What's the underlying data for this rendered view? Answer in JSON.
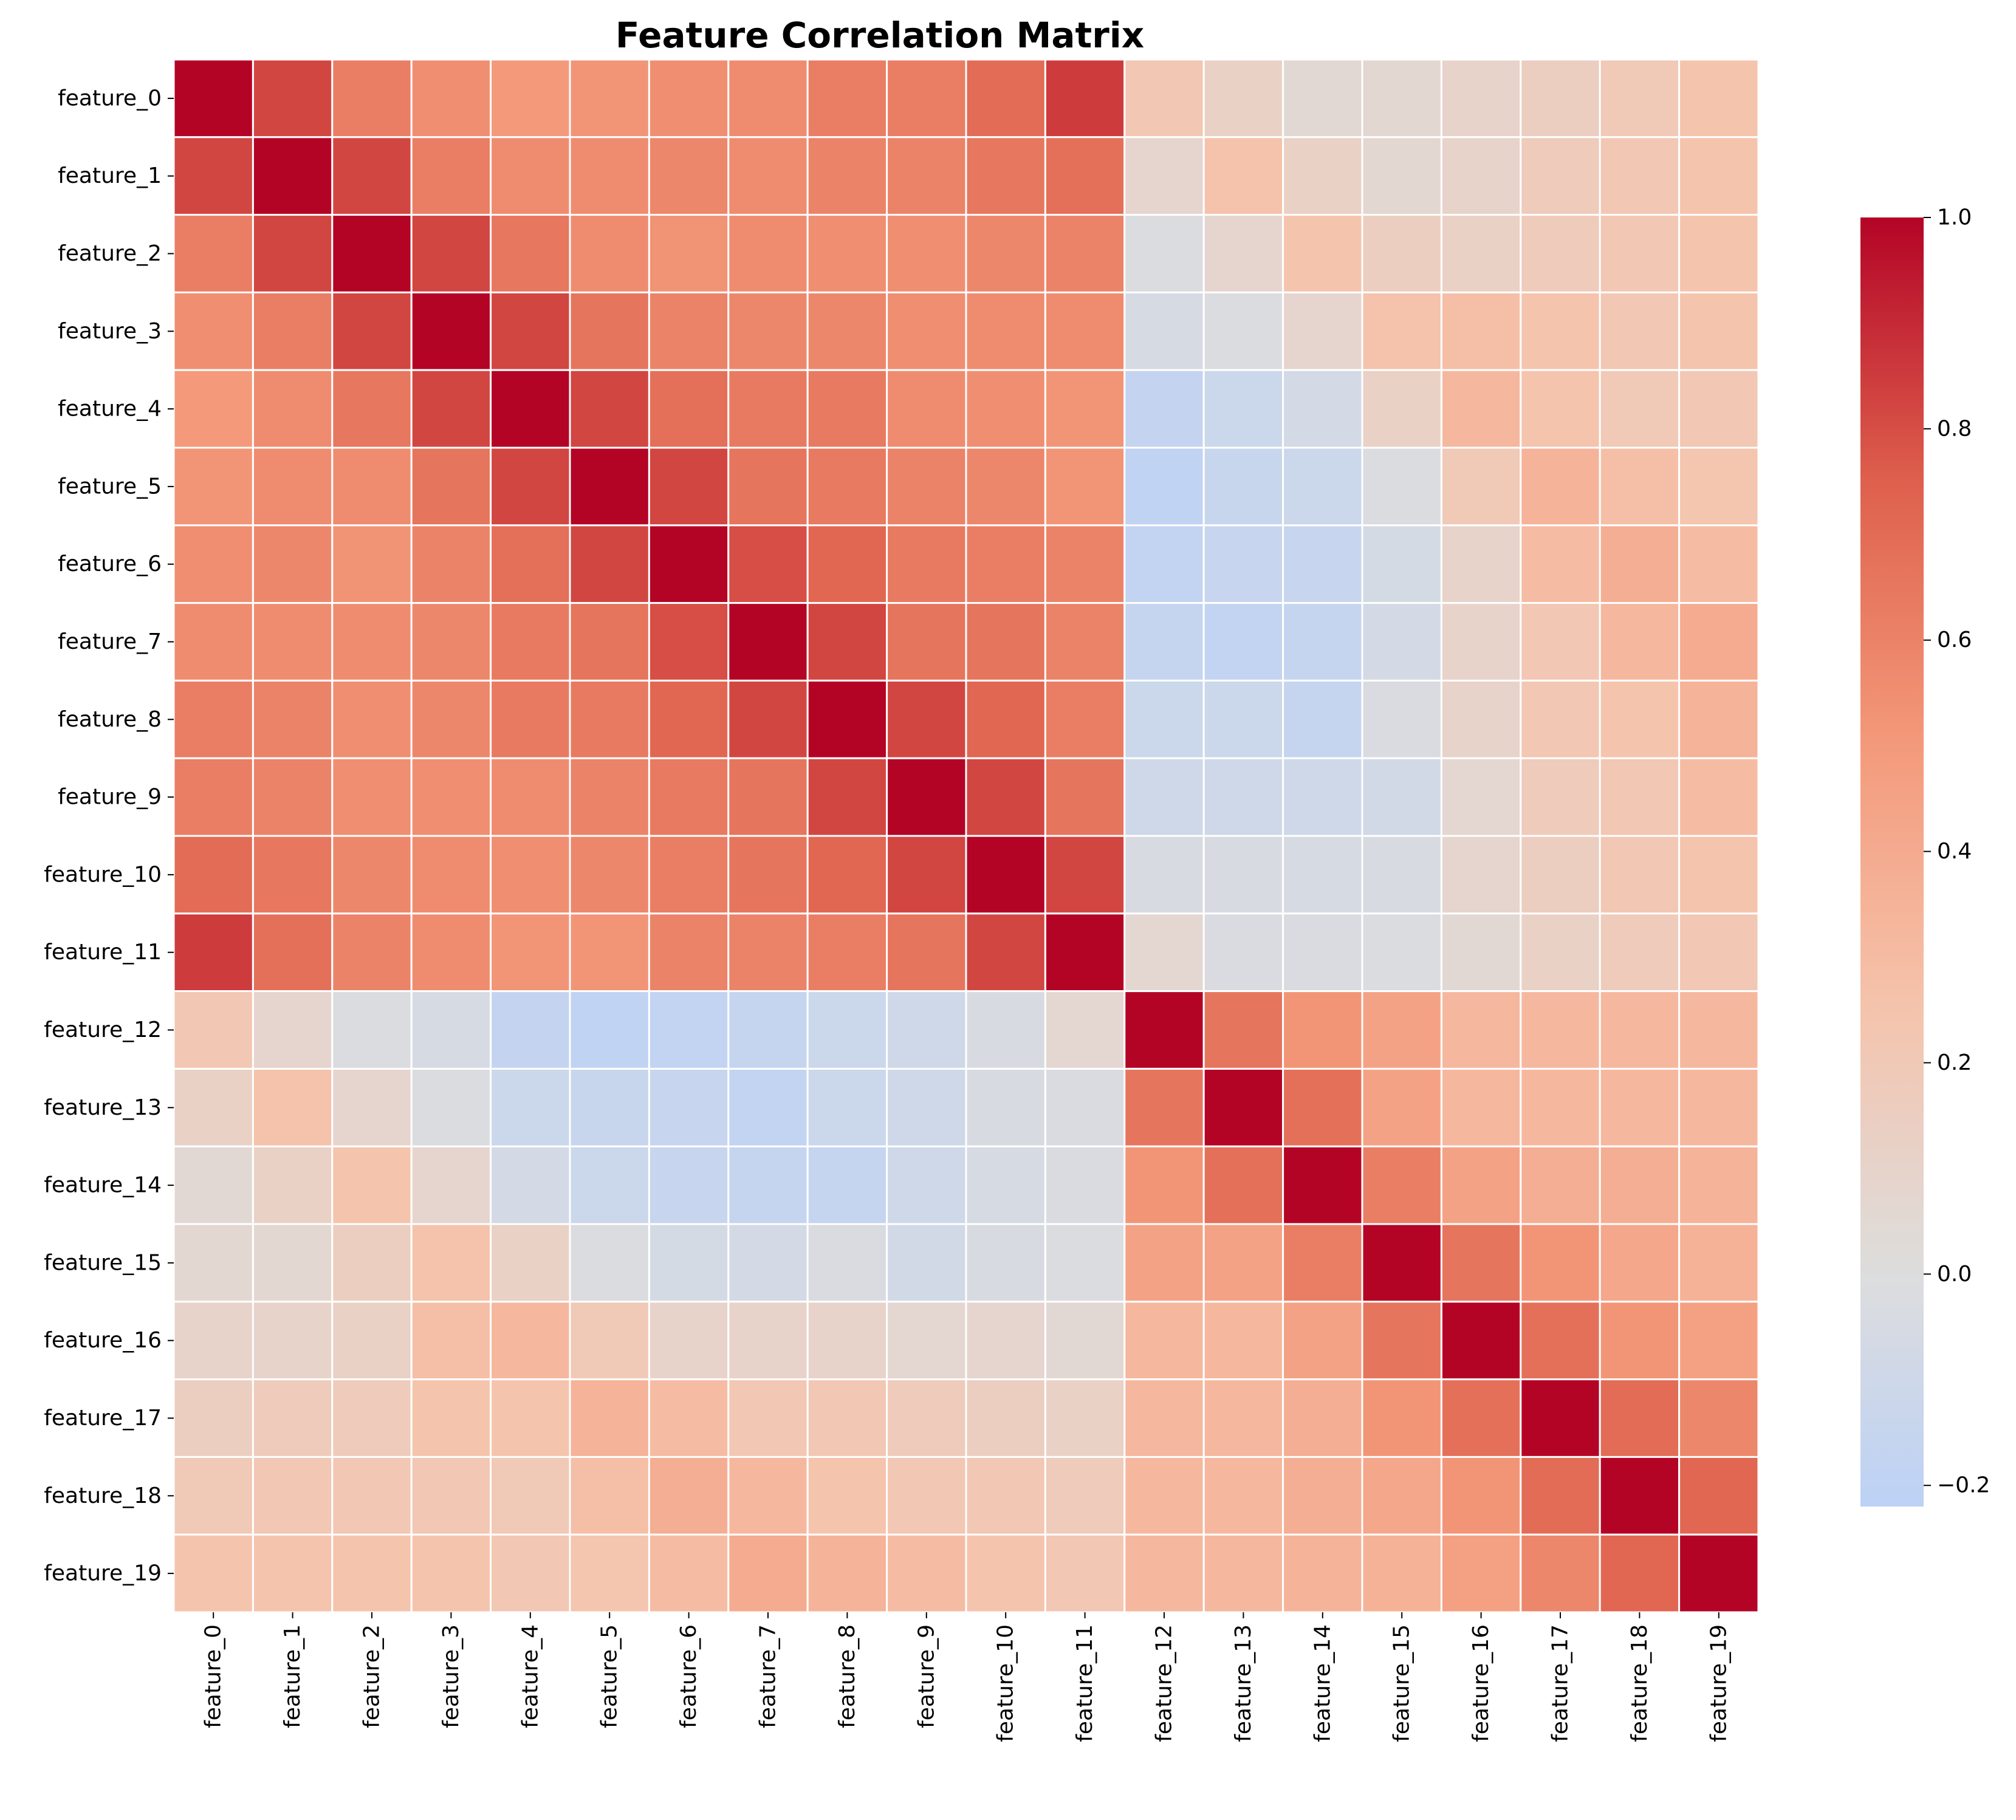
{
  "chart_data": {
    "type": "heatmap",
    "title": "Feature Correlation Matrix",
    "row_labels": [
      "feature_0",
      "feature_1",
      "feature_2",
      "feature_3",
      "feature_4",
      "feature_5",
      "feature_6",
      "feature_7",
      "feature_8",
      "feature_9",
      "feature_10",
      "feature_11",
      "feature_12",
      "feature_13",
      "feature_14",
      "feature_15",
      "feature_16",
      "feature_17",
      "feature_18",
      "feature_19"
    ],
    "col_labels": [
      "feature_0",
      "feature_1",
      "feature_2",
      "feature_3",
      "feature_4",
      "feature_5",
      "feature_6",
      "feature_7",
      "feature_8",
      "feature_9",
      "feature_10",
      "feature_11",
      "feature_12",
      "feature_13",
      "feature_14",
      "feature_15",
      "feature_16",
      "feature_17",
      "feature_18",
      "feature_19"
    ],
    "values": [
      [
        1.0,
        0.82,
        0.62,
        0.55,
        0.5,
        0.52,
        0.55,
        0.56,
        0.62,
        0.62,
        0.7,
        0.85,
        0.22,
        0.12,
        0.05,
        0.06,
        0.1,
        0.15,
        0.2,
        0.25
      ],
      [
        0.82,
        1.0,
        0.82,
        0.62,
        0.56,
        0.56,
        0.58,
        0.56,
        0.6,
        0.6,
        0.65,
        0.68,
        0.08,
        0.26,
        0.12,
        0.06,
        0.1,
        0.18,
        0.22,
        0.25
      ],
      [
        0.62,
        0.82,
        1.0,
        0.82,
        0.65,
        0.56,
        0.53,
        0.56,
        0.55,
        0.55,
        0.58,
        0.6,
        -0.02,
        0.08,
        0.25,
        0.15,
        0.12,
        0.18,
        0.22,
        0.25
      ],
      [
        0.55,
        0.62,
        0.82,
        1.0,
        0.82,
        0.66,
        0.6,
        0.58,
        0.58,
        0.55,
        0.56,
        0.56,
        -0.05,
        -0.02,
        0.08,
        0.26,
        0.28,
        0.25,
        0.22,
        0.25
      ],
      [
        0.5,
        0.56,
        0.65,
        0.82,
        1.0,
        0.82,
        0.68,
        0.64,
        0.64,
        0.56,
        0.55,
        0.52,
        -0.17,
        -0.12,
        -0.07,
        0.12,
        0.32,
        0.25,
        0.2,
        0.22
      ],
      [
        0.52,
        0.56,
        0.56,
        0.66,
        0.82,
        1.0,
        0.82,
        0.66,
        0.64,
        0.6,
        0.58,
        0.52,
        -0.19,
        -0.14,
        -0.12,
        -0.02,
        0.2,
        0.35,
        0.28,
        0.24
      ],
      [
        0.55,
        0.58,
        0.53,
        0.6,
        0.68,
        0.82,
        1.0,
        0.8,
        0.72,
        0.64,
        0.62,
        0.6,
        -0.18,
        -0.15,
        -0.15,
        -0.06,
        0.1,
        0.3,
        0.38,
        0.3
      ],
      [
        0.56,
        0.56,
        0.56,
        0.58,
        0.64,
        0.66,
        0.8,
        1.0,
        0.82,
        0.66,
        0.66,
        0.6,
        -0.16,
        -0.18,
        -0.16,
        -0.07,
        0.1,
        0.22,
        0.32,
        0.4
      ],
      [
        0.62,
        0.6,
        0.55,
        0.58,
        0.64,
        0.64,
        0.72,
        0.82,
        1.0,
        0.82,
        0.72,
        0.62,
        -0.12,
        -0.12,
        -0.16,
        -0.03,
        0.1,
        0.22,
        0.25,
        0.35
      ],
      [
        0.62,
        0.6,
        0.55,
        0.55,
        0.56,
        0.6,
        0.64,
        0.66,
        0.82,
        1.0,
        0.82,
        0.66,
        -0.1,
        -0.1,
        -0.1,
        -0.08,
        0.07,
        0.18,
        0.22,
        0.3
      ],
      [
        0.7,
        0.65,
        0.58,
        0.56,
        0.55,
        0.58,
        0.62,
        0.66,
        0.72,
        0.82,
        1.0,
        0.82,
        -0.04,
        -0.04,
        -0.05,
        -0.04,
        0.08,
        0.15,
        0.22,
        0.25
      ],
      [
        0.85,
        0.68,
        0.6,
        0.56,
        0.52,
        0.52,
        0.6,
        0.6,
        0.62,
        0.66,
        0.82,
        1.0,
        0.07,
        -0.03,
        -0.03,
        -0.02,
        0.05,
        0.12,
        0.18,
        0.22
      ],
      [
        0.22,
        0.08,
        -0.02,
        -0.05,
        -0.17,
        -0.19,
        -0.18,
        -0.16,
        -0.12,
        -0.1,
        -0.04,
        0.07,
        1.0,
        0.66,
        0.52,
        0.45,
        0.32,
        0.32,
        0.32,
        0.32
      ],
      [
        0.12,
        0.26,
        0.08,
        -0.02,
        -0.12,
        -0.14,
        -0.15,
        -0.18,
        -0.12,
        -0.1,
        -0.04,
        -0.03,
        0.66,
        1.0,
        0.68,
        0.45,
        0.32,
        0.32,
        0.32,
        0.32
      ],
      [
        0.05,
        0.12,
        0.25,
        0.08,
        -0.07,
        -0.12,
        -0.15,
        -0.16,
        -0.16,
        -0.1,
        -0.05,
        -0.03,
        0.52,
        0.68,
        1.0,
        0.62,
        0.45,
        0.38,
        0.38,
        0.35
      ],
      [
        0.06,
        0.06,
        0.15,
        0.26,
        0.12,
        -0.02,
        -0.06,
        -0.07,
        -0.03,
        -0.08,
        -0.04,
        -0.02,
        0.45,
        0.45,
        0.62,
        1.0,
        0.66,
        0.52,
        0.42,
        0.36
      ],
      [
        0.1,
        0.1,
        0.12,
        0.28,
        0.32,
        0.2,
        0.1,
        0.1,
        0.1,
        0.07,
        0.08,
        0.05,
        0.32,
        0.32,
        0.45,
        0.66,
        1.0,
        0.68,
        0.52,
        0.46
      ],
      [
        0.15,
        0.18,
        0.18,
        0.25,
        0.25,
        0.35,
        0.3,
        0.22,
        0.22,
        0.18,
        0.15,
        0.12,
        0.32,
        0.32,
        0.38,
        0.52,
        0.68,
        1.0,
        0.7,
        0.58
      ],
      [
        0.2,
        0.22,
        0.22,
        0.22,
        0.2,
        0.28,
        0.38,
        0.32,
        0.25,
        0.22,
        0.22,
        0.18,
        0.32,
        0.32,
        0.38,
        0.42,
        0.52,
        0.7,
        1.0,
        0.72
      ],
      [
        0.25,
        0.25,
        0.25,
        0.25,
        0.22,
        0.24,
        0.3,
        0.4,
        0.35,
        0.3,
        0.25,
        0.22,
        0.32,
        0.32,
        0.35,
        0.36,
        0.46,
        0.58,
        0.72,
        1.0
      ]
    ],
    "colorbar": {
      "colormap": "coolwarm",
      "vmin": -0.22,
      "vmax": 1.0,
      "ticks": [
        1.0,
        0.8,
        0.6,
        0.4,
        0.2,
        0.0,
        -0.2
      ],
      "tick_labels": [
        "1.0",
        "0.8",
        "0.6",
        "0.4",
        "0.2",
        "0.0",
        "−0.2"
      ]
    },
    "grid": true,
    "cell_border_color": "#ffffff",
    "legend": "right"
  }
}
